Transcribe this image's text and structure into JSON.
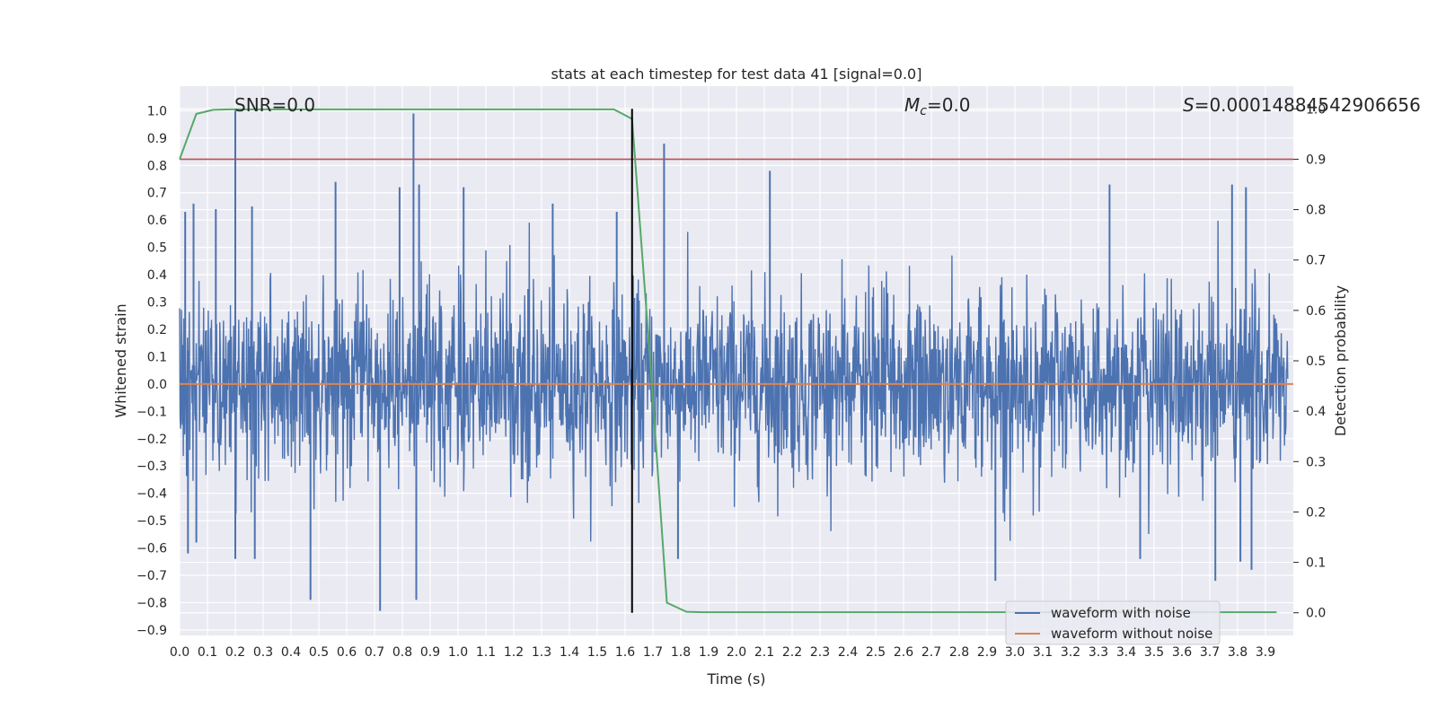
{
  "chart_data": {
    "type": "line",
    "title": "stats at each timestep for test data 41 [signal=0.0]",
    "xlabel": "Time (s)",
    "ylabel": "Whitened strain",
    "ylabel_right": "Detection probability",
    "xlim": [
      0.0,
      4.0
    ],
    "ylim": [
      -0.92,
      1.09
    ],
    "ylim_right": [
      -0.045,
      1.045
    ],
    "x_ticks": [
      "0.0",
      "0.1",
      "0.2",
      "0.3",
      "0.4",
      "0.5",
      "0.6",
      "0.7",
      "0.8",
      "0.9",
      "1.0",
      "1.1",
      "1.2",
      "1.3",
      "1.4",
      "1.5",
      "1.6",
      "1.7",
      "1.8",
      "1.9",
      "2.0",
      "2.1",
      "2.2",
      "2.3",
      "2.4",
      "2.5",
      "2.6",
      "2.7",
      "2.8",
      "2.9",
      "3.0",
      "3.1",
      "3.2",
      "3.3",
      "3.4",
      "3.5",
      "3.6",
      "3.7",
      "3.8",
      "3.9"
    ],
    "y_ticks": [
      "1.0",
      "0.9",
      "0.8",
      "0.7",
      "0.6",
      "0.5",
      "0.4",
      "0.3",
      "0.2",
      "0.1",
      "0.0",
      "−0.1",
      "−0.2",
      "−0.3",
      "−0.4",
      "−0.5",
      "−0.6",
      "−0.7",
      "−0.8",
      "−0.9"
    ],
    "y_tick_values": [
      1.0,
      0.9,
      0.8,
      0.7,
      0.6,
      0.5,
      0.4,
      0.3,
      0.2,
      0.1,
      0.0,
      -0.1,
      -0.2,
      -0.3,
      -0.4,
      -0.5,
      -0.6,
      -0.7,
      -0.8,
      -0.9
    ],
    "y_right_ticks": [
      "1.0",
      "0.9",
      "0.8",
      "0.7",
      "0.6",
      "0.5",
      "0.4",
      "0.3",
      "0.2",
      "0.1",
      "0.0"
    ],
    "y_right_tick_values": [
      1.0,
      0.9,
      0.8,
      0.7,
      0.6,
      0.5,
      0.4,
      0.3,
      0.2,
      0.1,
      0.0
    ],
    "annotations": {
      "snr": "SNR=0.0",
      "mc_symbol": "M",
      "mc_subscript": "c",
      "mc_value": "=0.0",
      "s_symbol": "S",
      "s_value": "=0.00014884542906656"
    },
    "threshold_probability": 0.9,
    "marker_time": 1.625,
    "series": [
      {
        "name": "waveform with noise",
        "color": "#4c72b0",
        "axis": "left",
        "description": "whitened noise strain, roughly within -0.83 to 0.99",
        "spikes": [
          {
            "t": 0.02,
            "v": 0.63
          },
          {
            "t": 0.03,
            "v": -0.62
          },
          {
            "t": 0.05,
            "v": 0.66
          },
          {
            "t": 0.06,
            "v": -0.58
          },
          {
            "t": 0.13,
            "v": 0.64
          },
          {
            "t": 0.2,
            "v": 1.0
          },
          {
            "t": 0.2,
            "v": -0.64
          },
          {
            "t": 0.26,
            "v": 0.65
          },
          {
            "t": 0.27,
            "v": -0.64
          },
          {
            "t": 0.47,
            "v": -0.79
          },
          {
            "t": 0.56,
            "v": 0.74
          },
          {
            "t": 0.72,
            "v": -0.83
          },
          {
            "t": 0.79,
            "v": 0.72
          },
          {
            "t": 0.84,
            "v": 0.99
          },
          {
            "t": 0.85,
            "v": -0.79
          },
          {
            "t": 0.86,
            "v": 0.73
          },
          {
            "t": 1.02,
            "v": 0.72
          },
          {
            "t": 1.34,
            "v": 0.66
          },
          {
            "t": 1.57,
            "v": 0.63
          },
          {
            "t": 1.74,
            "v": 0.88
          },
          {
            "t": 1.79,
            "v": -0.64
          },
          {
            "t": 2.12,
            "v": 0.78
          },
          {
            "t": 3.34,
            "v": 0.73
          },
          {
            "t": 3.45,
            "v": -0.64
          },
          {
            "t": 3.72,
            "v": -0.72
          },
          {
            "t": 3.78,
            "v": 0.73
          },
          {
            "t": 3.81,
            "v": -0.65
          },
          {
            "t": 3.83,
            "v": 0.72
          },
          {
            "t": 3.85,
            "v": -0.68
          },
          {
            "t": 2.93,
            "v": -0.72
          }
        ],
        "seed": 41
      },
      {
        "name": "waveform without noise",
        "color": "#dd8452",
        "axis": "left",
        "description": "flat zero waveform",
        "x": [
          0.0,
          4.0
        ],
        "values": [
          0.0,
          0.0
        ]
      },
      {
        "name": "detection probability",
        "color": "#55a868",
        "axis": "right",
        "x": [
          0.0,
          0.06,
          0.12,
          0.18,
          0.25,
          0.5,
          0.75,
          1.0,
          1.25,
          1.5,
          1.56,
          1.625,
          1.69,
          1.75,
          1.82,
          1.88,
          2.5,
          3.0,
          3.5,
          3.94
        ],
        "values": [
          0.9,
          0.99,
          0.998,
          0.999,
          0.999,
          0.999,
          0.999,
          0.999,
          0.999,
          0.999,
          0.999,
          0.98,
          0.5,
          0.02,
          0.002,
          0.001,
          0.001,
          0.001,
          0.001,
          0.001
        ]
      }
    ],
    "legend": {
      "placement": "lower-right",
      "entries": [
        {
          "label": "waveform with noise",
          "color": "#4c72b0"
        },
        {
          "label": "waveform without noise",
          "color": "#dd8452"
        }
      ]
    },
    "colors": {
      "plot_background": "#eaeaf2",
      "grid": "#ffffff",
      "threshold_line": "#c44e52",
      "marker_line": "#000000"
    }
  }
}
